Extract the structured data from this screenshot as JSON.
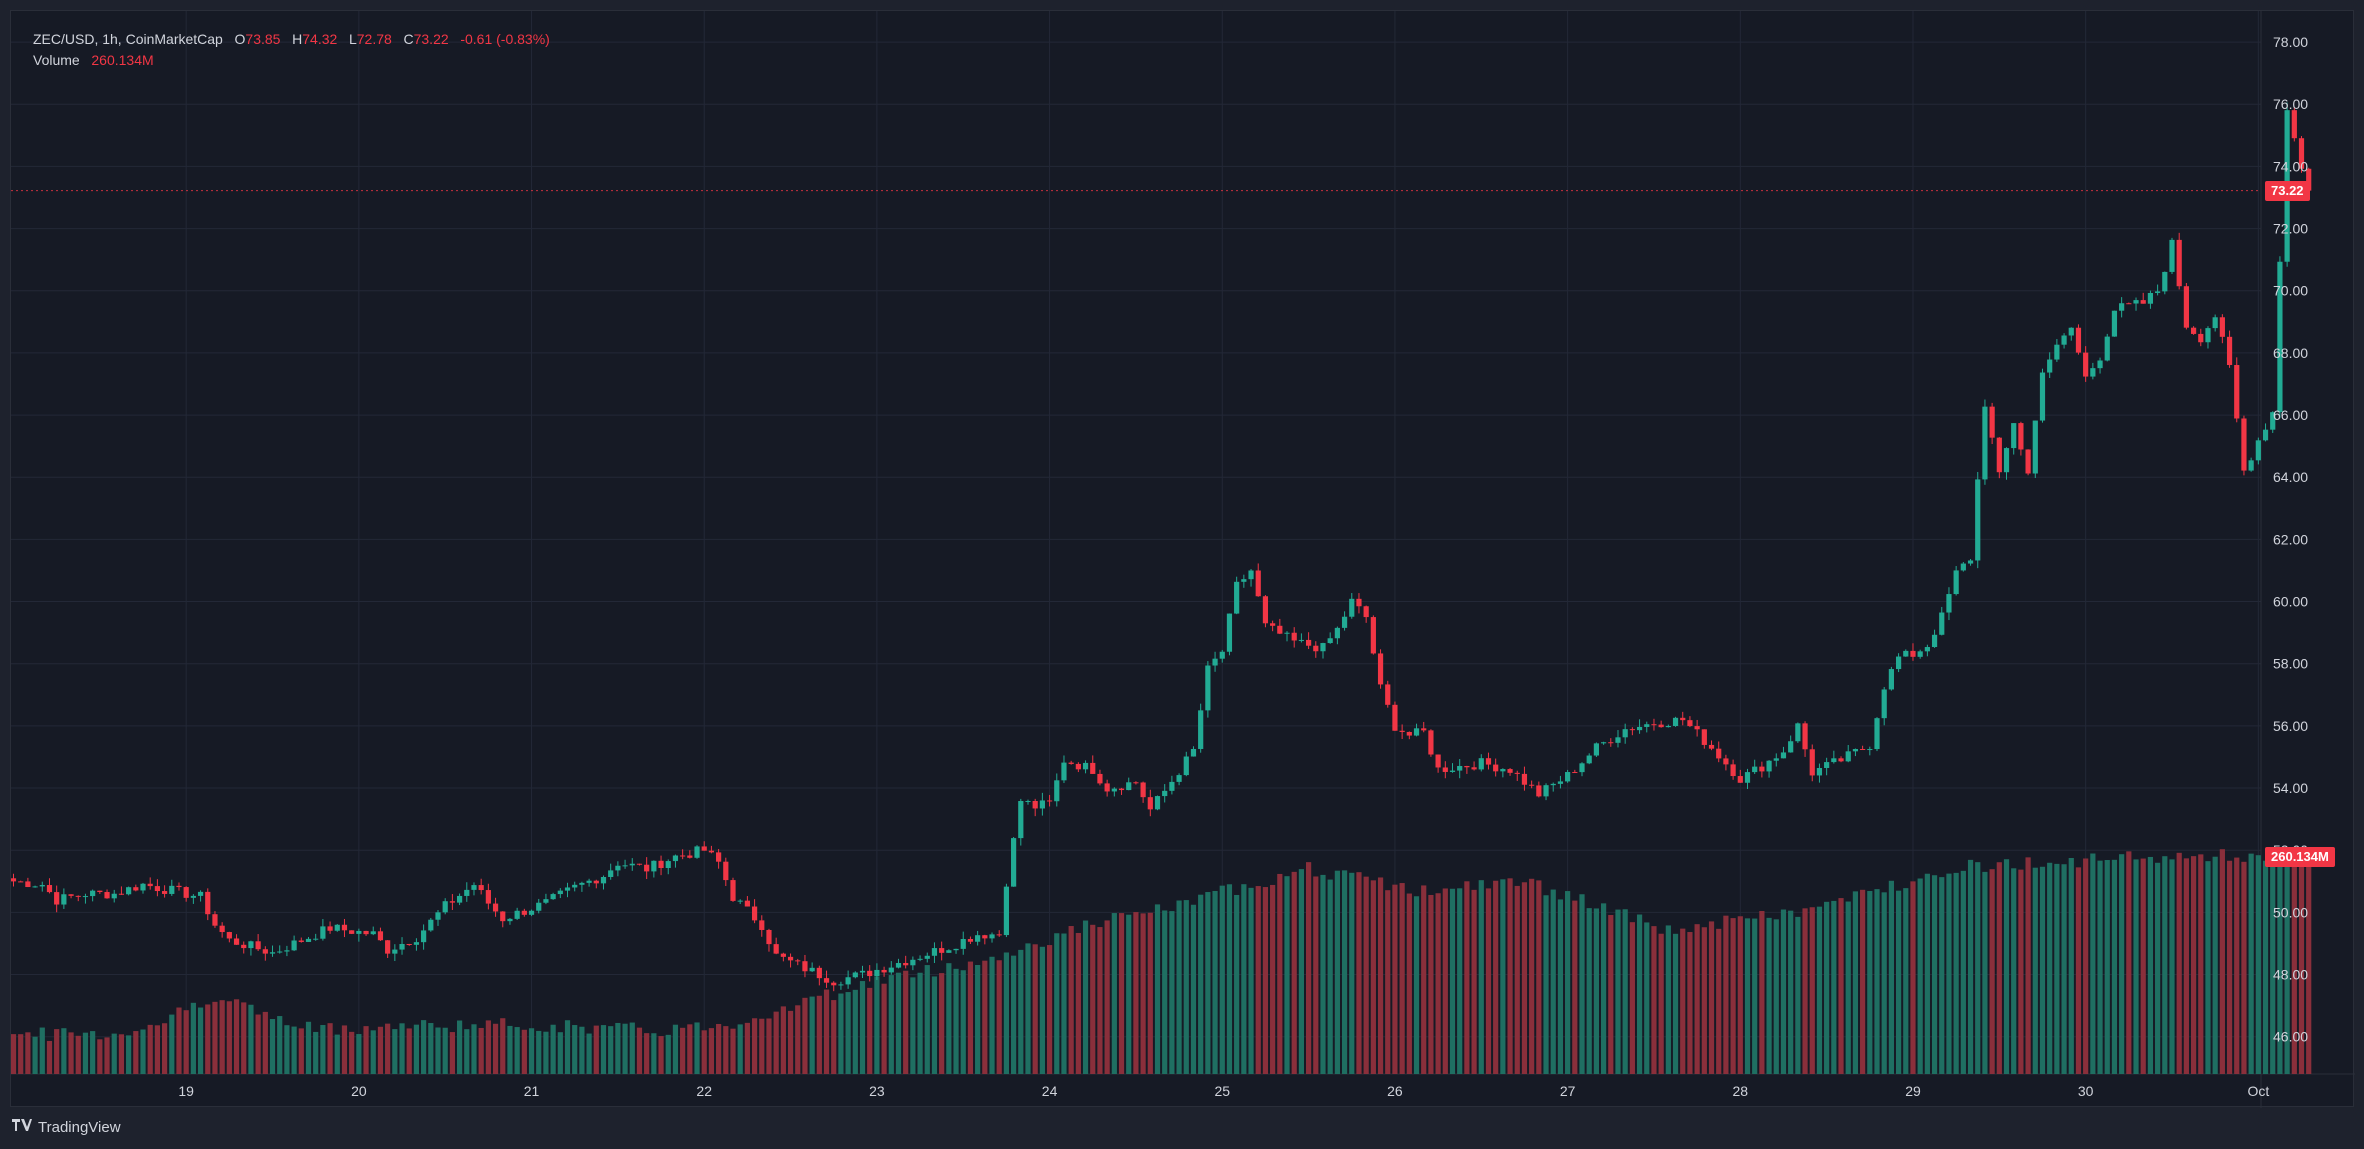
{
  "legend": {
    "symbol": "ZEC/USD, 1h, CoinMarketCap",
    "open_label": "O",
    "open": "73.85",
    "high_label": "H",
    "high": "74.32",
    "low_label": "L",
    "low": "72.78",
    "close_label": "C",
    "close": "73.22",
    "change": "-0.61 (-0.83%)",
    "volume_label": "Volume",
    "volume": "260.134M"
  },
  "price_tag": "73.22",
  "volume_tag": "260.134M",
  "brand": {
    "name": "TradingView",
    "logo": "tradingview-logo"
  },
  "colors": {
    "up": "#22ab94",
    "down": "#f23645",
    "up_volume": "#1f6f62",
    "down_volume": "#8a2f3b",
    "background": "#161a25",
    "grid": "#232837"
  },
  "chart_data": {
    "type": "candlestick",
    "interval": "1h",
    "y_axis": {
      "range": [
        44.8,
        79.0
      ],
      "ticks": [
        "46.00",
        "48.00",
        "50.00",
        "52.00",
        "54.00",
        "56.00",
        "58.00",
        "60.00",
        "62.00",
        "64.00",
        "66.00",
        "68.00",
        "70.00",
        "72.00",
        "74.00",
        "76.00",
        "78.00"
      ],
      "position": "right"
    },
    "x_axis": {
      "ticks": [
        "19",
        "20",
        "21",
        "22",
        "23",
        "24",
        "25",
        "26",
        "27",
        "28",
        "29",
        "30",
        "Oct"
      ],
      "tick_hours": [
        24,
        48,
        72,
        96,
        120,
        144,
        168,
        192,
        216,
        240,
        264,
        288,
        312
      ]
    },
    "last_price_line": 73.22,
    "grid": true,
    "price_anchors": [
      [
        0,
        51.0
      ],
      [
        4,
        50.9
      ],
      [
        6,
        50.4
      ],
      [
        10,
        50.6
      ],
      [
        14,
        50.6
      ],
      [
        18,
        50.9
      ],
      [
        22,
        50.7
      ],
      [
        26,
        50.5
      ],
      [
        28,
        49.6
      ],
      [
        30,
        49.1
      ],
      [
        36,
        48.7
      ],
      [
        40,
        49.1
      ],
      [
        44,
        49.5
      ],
      [
        50,
        49.3
      ],
      [
        52,
        48.8
      ],
      [
        56,
        49.2
      ],
      [
        60,
        50.2
      ],
      [
        64,
        50.9
      ],
      [
        66,
        50.3
      ],
      [
        68,
        49.8
      ],
      [
        74,
        50.3
      ],
      [
        78,
        50.8
      ],
      [
        82,
        51.2
      ],
      [
        84,
        51.6
      ],
      [
        88,
        51.4
      ],
      [
        92,
        51.8
      ],
      [
        96,
        52.0
      ],
      [
        98,
        51.6
      ],
      [
        100,
        50.5
      ],
      [
        104,
        49.6
      ],
      [
        106,
        48.6
      ],
      [
        110,
        48.2
      ],
      [
        114,
        47.8
      ],
      [
        118,
        48.0
      ],
      [
        122,
        48.3
      ],
      [
        126,
        48.6
      ],
      [
        130,
        48.9
      ],
      [
        134,
        49.3
      ],
      [
        137,
        49.3
      ],
      [
        138,
        51.0
      ],
      [
        140,
        53.6
      ],
      [
        142,
        53.4
      ],
      [
        144,
        53.5
      ],
      [
        146,
        54.9
      ],
      [
        150,
        54.6
      ],
      [
        152,
        54.0
      ],
      [
        156,
        54.2
      ],
      [
        158,
        53.3
      ],
      [
        160,
        53.9
      ],
      [
        164,
        55.2
      ],
      [
        166,
        57.8
      ],
      [
        168,
        58.4
      ],
      [
        170,
        60.5
      ],
      [
        172,
        61.0
      ],
      [
        174,
        59.2
      ],
      [
        178,
        58.7
      ],
      [
        182,
        58.5
      ],
      [
        184,
        59.1
      ],
      [
        186,
        60.0
      ],
      [
        188,
        59.5
      ],
      [
        190,
        57.2
      ],
      [
        192,
        56.0
      ],
      [
        194,
        55.7
      ],
      [
        196,
        55.8
      ],
      [
        198,
        54.6
      ],
      [
        204,
        54.8
      ],
      [
        208,
        54.6
      ],
      [
        212,
        53.8
      ],
      [
        216,
        54.4
      ],
      [
        220,
        55.3
      ],
      [
        224,
        55.9
      ],
      [
        228,
        56.1
      ],
      [
        232,
        56.2
      ],
      [
        236,
        55.3
      ],
      [
        240,
        54.3
      ],
      [
        243,
        54.7
      ],
      [
        246,
        55.2
      ],
      [
        248,
        56.0
      ],
      [
        250,
        54.5
      ],
      [
        254,
        54.9
      ],
      [
        258,
        55.4
      ],
      [
        260,
        57.3
      ],
      [
        262,
        58.2
      ],
      [
        264,
        58.3
      ],
      [
        266,
        58.6
      ],
      [
        268,
        59.5
      ],
      [
        270,
        60.9
      ],
      [
        272,
        61.4
      ],
      [
        274,
        66.4
      ],
      [
        276,
        64.0
      ],
      [
        278,
        65.8
      ],
      [
        280,
        64.1
      ],
      [
        282,
        67.5
      ],
      [
        286,
        68.8
      ],
      [
        288,
        67.2
      ],
      [
        290,
        67.9
      ],
      [
        292,
        69.4
      ],
      [
        296,
        69.6
      ],
      [
        298,
        70.0
      ],
      [
        300,
        71.5
      ],
      [
        302,
        68.9
      ],
      [
        304,
        68.5
      ],
      [
        306,
        69.2
      ],
      [
        308,
        67.5
      ],
      [
        310,
        64.2
      ],
      [
        312,
        65.2
      ],
      [
        314,
        66.1
      ],
      [
        316,
        75.9
      ],
      [
        318,
        73.9
      ],
      [
        319,
        73.22
      ]
    ],
    "volume_levels": [
      [
        0,
        0.0
      ],
      [
        14,
        0.0
      ],
      [
        20,
        0.06
      ],
      [
        28,
        0.22
      ],
      [
        40,
        0.03
      ],
      [
        60,
        0.05
      ],
      [
        72,
        0.05
      ],
      [
        90,
        0.02
      ],
      [
        100,
        0.06
      ],
      [
        120,
        0.3
      ],
      [
        136,
        0.42
      ],
      [
        150,
        0.62
      ],
      [
        162,
        0.72
      ],
      [
        170,
        0.82
      ],
      [
        180,
        0.93
      ],
      [
        196,
        0.8
      ],
      [
        210,
        0.86
      ],
      [
        230,
        0.58
      ],
      [
        250,
        0.7
      ],
      [
        270,
        0.94
      ],
      [
        300,
        1.0
      ],
      [
        319,
        1.0
      ]
    ],
    "volume_max_label": "260.134M"
  }
}
